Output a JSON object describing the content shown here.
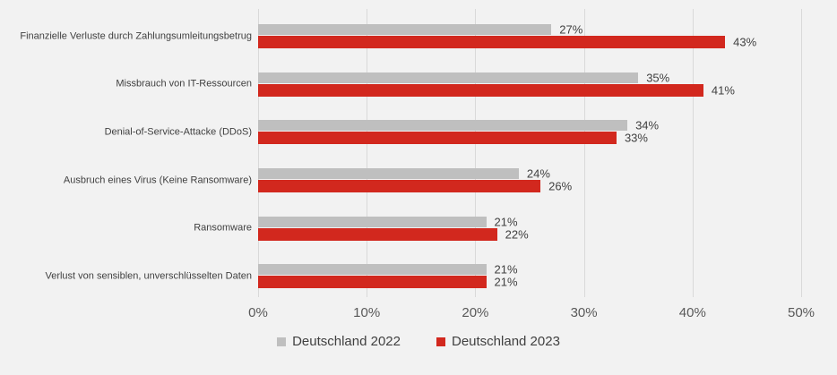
{
  "chart_data": {
    "type": "bar",
    "orientation": "horizontal",
    "title": "",
    "categories": [
      "Finanzielle Verluste durch Zahlungsumleitungsbetrug",
      "Missbrauch von IT-Ressourcen",
      "Denial-of-Service-Attacke (DDoS)",
      "Ausbruch eines Virus (Keine Ransomware)",
      "Ransomware",
      "Verlust von sensiblen, unverschlüsselten Daten"
    ],
    "series": [
      {
        "name": "Deutschland 2022",
        "color": "#bfbfbf",
        "values": [
          27,
          35,
          34,
          24,
          21,
          21
        ]
      },
      {
        "name": "Deutschland 2023",
        "color": "#d2281e",
        "values": [
          43,
          41,
          33,
          26,
          22,
          21
        ]
      }
    ],
    "value_suffix": "%",
    "x_axis": {
      "min": 0,
      "max": 50,
      "ticks": [
        "0%",
        "10%",
        "20%",
        "30%",
        "40%",
        "50%"
      ]
    },
    "legend_position": "bottom",
    "grid": true
  },
  "colors": {
    "background": "#f2f2f2",
    "gridline": "#d9d9d9",
    "category_text": "#404040",
    "value_text": "#404040",
    "axis_text": "#595959"
  }
}
